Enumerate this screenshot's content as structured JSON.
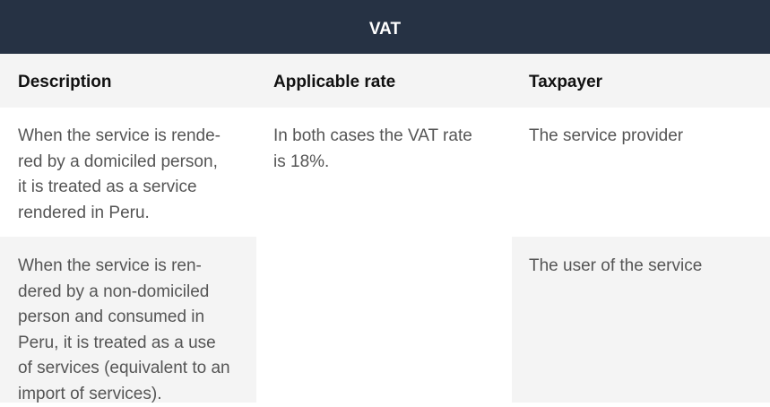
{
  "title": "VAT",
  "columns": [
    "Description",
    "Applicable rate",
    "Taxpayer"
  ],
  "rows": [
    {
      "description": "When the service is rende-red by a domiciled person, it is treated as a service rendered in Peru.",
      "description_lines": [
        "When the service is rende-",
        "red by a domiciled person,",
        "it is treated as a service",
        "rendered in Peru."
      ],
      "rate_lines": [
        "In both cases the VAT rate",
        "is 18%."
      ],
      "taxpayer": "The service provider"
    },
    {
      "description_lines": [
        "When the service is ren-",
        "dered by a non-domiciled",
        "person and consumed in",
        "Peru, it is treated as a use",
        "of services (equivalent to an",
        "import of services)."
      ],
      "taxpayer": "The user of the service"
    }
  ],
  "colors": {
    "header_bar": "#263244",
    "row_alt": "#f4f4f4"
  }
}
